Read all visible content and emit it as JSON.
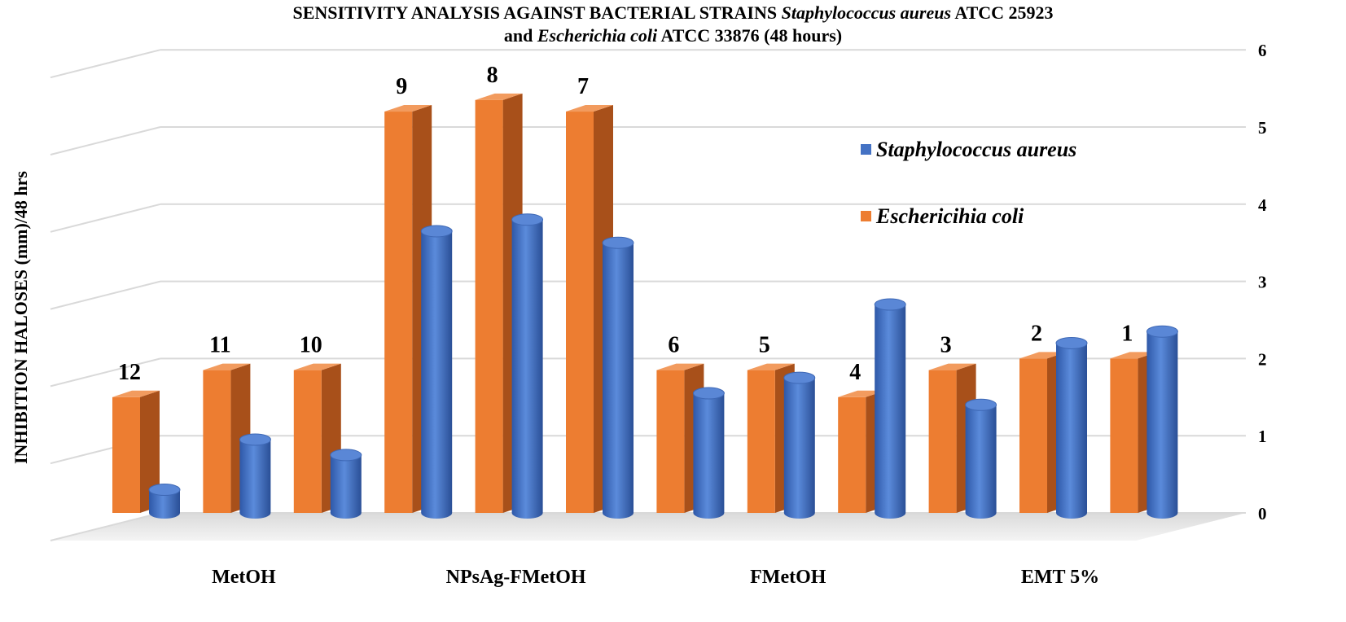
{
  "chart_data": {
    "type": "bar",
    "title": {
      "line1_prefix": "SENSITIVITY ANALYSIS AGAINST BACTERIAL STRAINS",
      "line1_italic": "Staphylococcus aureus",
      "line1_suffix": "ATCC 25923",
      "line2_prefix": "and",
      "line2_italic": "Escherichia coli",
      "line2_suffix": "ATCC 33876 (48 hours)"
    },
    "ylabel": "INHIBITION HALOSES (mm)/48 hrs",
    "ylim": [
      0,
      6
    ],
    "y_ticks": [
      "0",
      "1",
      "2",
      "3",
      "4",
      "5",
      "6"
    ],
    "grid": true,
    "legend_position": "right",
    "group_labels": [
      {
        "label": "MetOH",
        "bar_span": [
          0,
          2
        ]
      },
      {
        "label": "NPsAg-FMetOH",
        "bar_span": [
          3,
          5
        ]
      },
      {
        "label": "FMetOH",
        "bar_span": [
          6,
          8
        ]
      },
      {
        "label": "EMT 5%",
        "bar_span": [
          9,
          11
        ]
      }
    ],
    "categories": [
      "12",
      "11",
      "10",
      "9",
      "8",
      "7",
      "6",
      "5",
      "4",
      "3",
      "2",
      "1"
    ],
    "series": [
      {
        "name": "Eschericihia coli",
        "color": "#ED7D31",
        "shape": "box",
        "values": [
          1.5,
          1.85,
          1.85,
          5.2,
          5.35,
          5.2,
          1.85,
          1.85,
          1.5,
          1.85,
          2.0,
          2.0
        ]
      },
      {
        "name": "Staphylococcus aureus",
        "color": "#4472C4",
        "shape": "cylinder",
        "values": [
          0.3,
          0.95,
          0.75,
          3.65,
          3.8,
          3.5,
          1.55,
          1.75,
          2.7,
          1.4,
          2.2,
          2.35
        ]
      }
    ],
    "legend": [
      {
        "label": "Staphylococcus aureus",
        "color": "#4472C4"
      },
      {
        "label": "Eschericihia coli",
        "color": "#ED7D31"
      }
    ]
  }
}
